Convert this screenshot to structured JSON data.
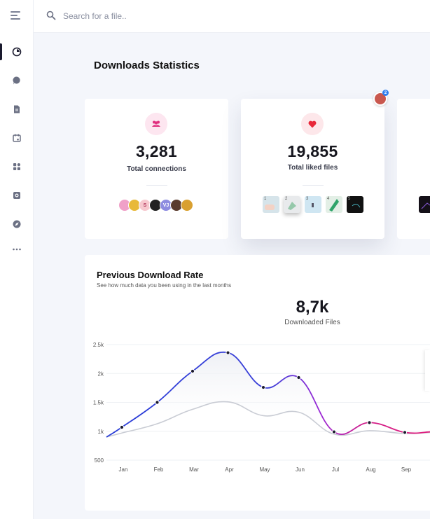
{
  "search": {
    "placeholder": "Search for a file.."
  },
  "page": {
    "title": "Downloads Statistics"
  },
  "sidebar": {
    "items": [
      {
        "icon": "pie-chart-icon",
        "active": true
      },
      {
        "icon": "chat-bubble-icon",
        "active": false
      },
      {
        "icon": "document-icon",
        "active": false
      },
      {
        "icon": "calendar-icon",
        "active": false
      },
      {
        "icon": "apps-grid-icon",
        "active": false
      },
      {
        "icon": "camera-icon",
        "active": false
      },
      {
        "icon": "compass-icon",
        "active": false
      },
      {
        "icon": "more-dots-icon",
        "active": false
      }
    ]
  },
  "stats": [
    {
      "value": "3,281",
      "label": "Total connections",
      "icon": "users-icon",
      "icon_color": "#e0307f",
      "icon_bg": "#fde6f0"
    },
    {
      "value": "19,855",
      "label": "Total liked files",
      "icon": "heart-icon",
      "icon_color": "#e8283a",
      "icon_bg": "#fde7ea"
    }
  ],
  "connections_avatars": [
    {
      "color": "#f0a0c8",
      "text": ""
    },
    {
      "color": "#e8b93a",
      "text": ""
    },
    {
      "color": "#f7c9cf",
      "text": "S"
    },
    {
      "color": "#222222",
      "text": ""
    },
    {
      "color": "#8e8ce0",
      "text": "VJ"
    },
    {
      "color": "#5a3b2e",
      "text": ""
    },
    {
      "color": "#d9a030",
      "text": ""
    }
  ],
  "liked_thumbs": [
    {
      "n": "1",
      "color": "#d6e4ea"
    },
    {
      "n": "2",
      "color": "#e8eaec"
    },
    {
      "n": "3",
      "color": "#cfe6f2"
    },
    {
      "n": "4",
      "color": "#e3efe6"
    },
    {
      "n": "5",
      "color": "#111111"
    }
  ],
  "notification": {
    "count": "2"
  },
  "download_rate": {
    "title": "Previous Download Rate",
    "subtitle": "See how much data you been using in the last months",
    "total_value": "8,7k",
    "total_label": "Downloaded Files"
  },
  "chart_data": {
    "type": "line",
    "categories": [
      "Jan",
      "Feb",
      "Mar",
      "Apr",
      "May",
      "Jun",
      "Jul",
      "Aug",
      "Sep"
    ],
    "y_ticks": [
      "2.5k",
      "2k",
      "1.5k",
      "1k",
      "500"
    ],
    "ylim": [
      500,
      2500
    ],
    "grid": true,
    "series": [
      {
        "values": [
          1070,
          1500,
          2040,
          2360,
          1760,
          1930,
          990,
          1150,
          980
        ],
        "colors": [
          "#2b3fd8",
          "#9b2ad6",
          "#e0207f"
        ]
      },
      {
        "values": [
          970,
          1130,
          1380,
          1510,
          1270,
          1330,
          950,
          1010,
          960
        ],
        "colors": [
          "#c9ccd4"
        ]
      }
    ]
  }
}
